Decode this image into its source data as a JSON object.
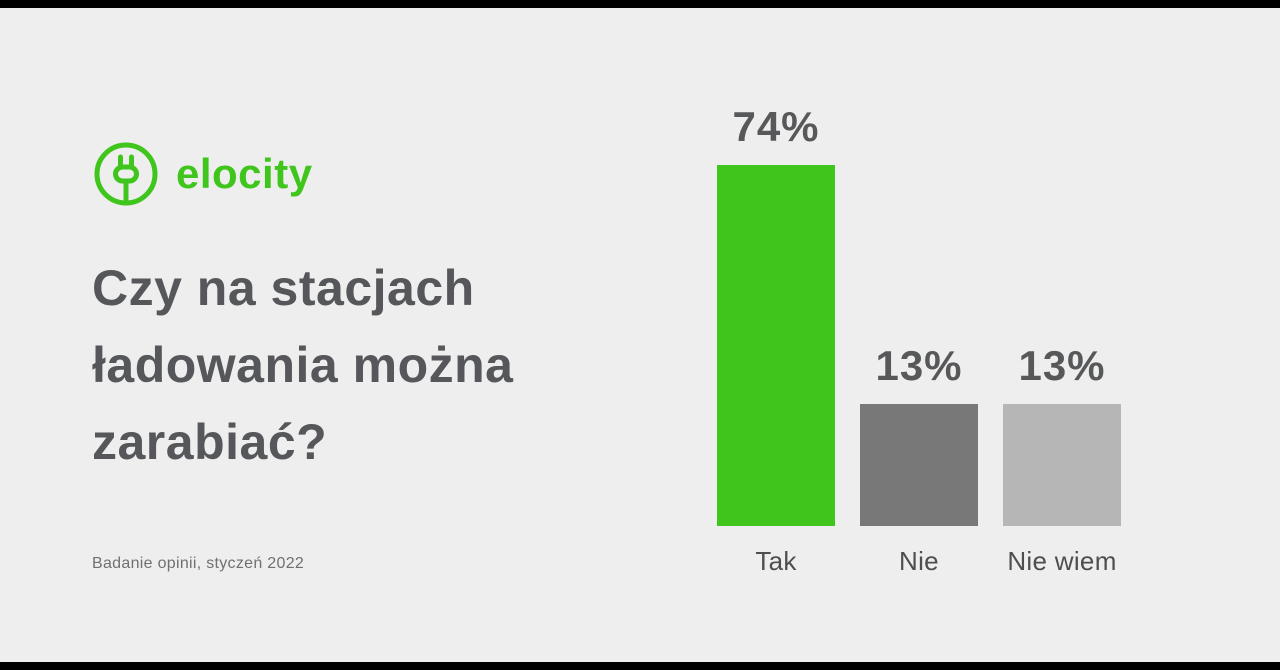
{
  "brand": {
    "name": "elocity",
    "accent_color": "#3fc51c"
  },
  "headline": {
    "full": "Czy na stacjach ładowania można zarabiać?",
    "lines": [
      "Czy na stacjach",
      "ładowania można",
      "zarabiać?"
    ]
  },
  "footer": {
    "source": "Badanie opinii, styczeń 2022"
  },
  "colors": {
    "background": "#eeeeee",
    "letterbox": "#000000",
    "title_text": "#55575a",
    "bar_yes": "#3fc51c",
    "bar_no": "#787878",
    "bar_unknown": "#b6b6b6"
  },
  "chart_data": {
    "type": "bar",
    "title": "Czy na stacjach ładowania można zarabiać?",
    "categories": [
      "Tak",
      "Nie",
      "Nie wiem"
    ],
    "values": [
      74,
      13,
      13
    ],
    "value_labels": [
      "74%",
      "13%",
      "13%"
    ],
    "bar_colors": [
      "#3fc51c",
      "#787878",
      "#b6b6b6"
    ],
    "xlabel": "",
    "ylabel": "",
    "ylim": [
      0,
      80
    ],
    "grid": false,
    "legend": false
  }
}
